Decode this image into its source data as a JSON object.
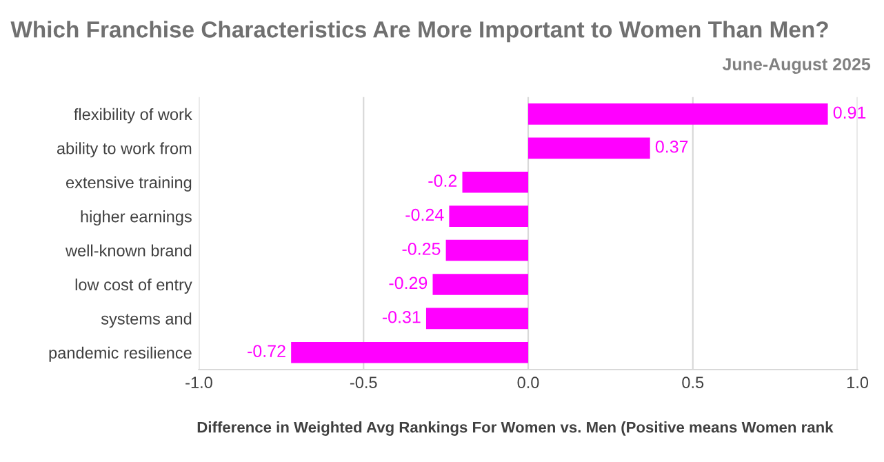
{
  "chart_data": {
    "type": "bar",
    "orientation": "horizontal",
    "title": "Which Franchise Characteristics Are More Important to Women Than Men?",
    "subtitle": "June-August 2025",
    "xlabel": "Difference in Weighted Avg Rankings For Women vs. Men (Positive means Women rank",
    "categories": [
      "flexibility of work",
      "ability to work from",
      "extensive training",
      "higher earnings",
      "well-known brand",
      "low cost of entry",
      "systems and",
      "pandemic resilience"
    ],
    "values": [
      0.91,
      0.37,
      -0.2,
      -0.24,
      -0.25,
      -0.29,
      -0.31,
      -0.72
    ],
    "color": "#ff00ff",
    "xlim": [
      -1.0,
      1.0
    ],
    "xticks": [
      {
        "value": -1.0,
        "label": "-1.0"
      },
      {
        "value": -0.5,
        "label": "-0.5"
      },
      {
        "value": 0.0,
        "label": "0.0"
      },
      {
        "value": 0.5,
        "label": "0.5"
      },
      {
        "value": 1.0,
        "label": "1.0"
      }
    ],
    "grid": "x",
    "data_labels": true
  }
}
